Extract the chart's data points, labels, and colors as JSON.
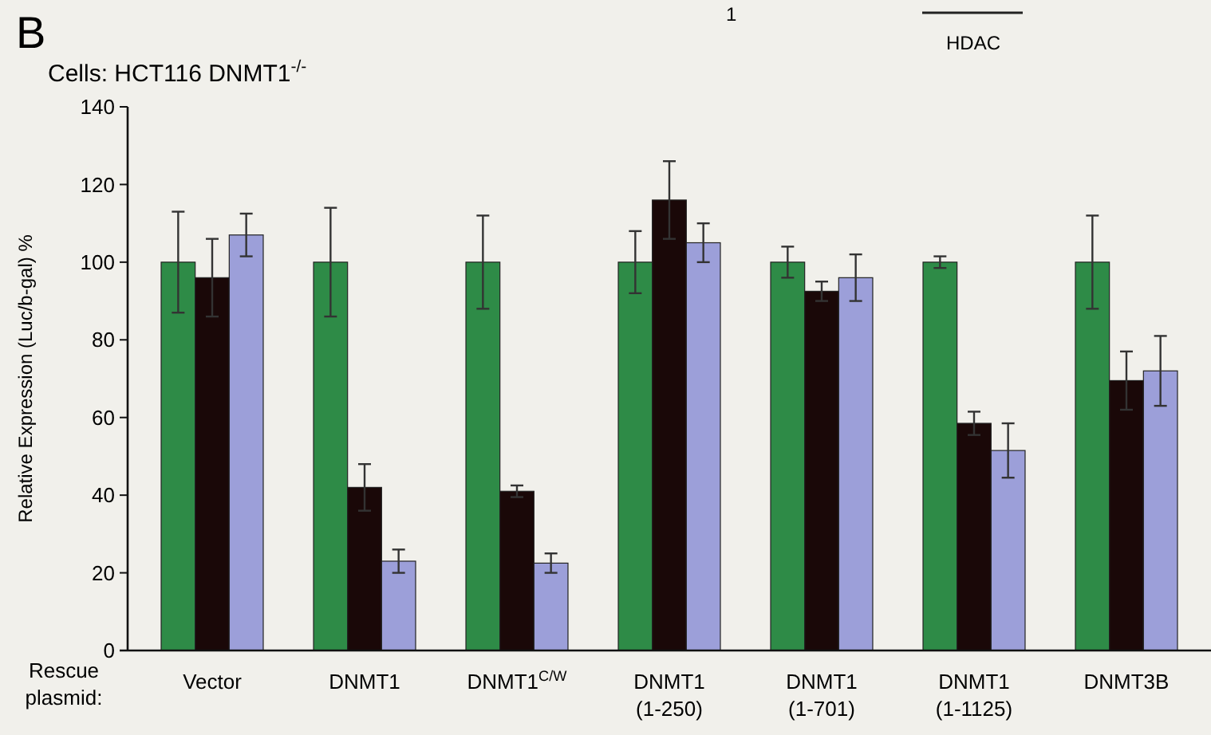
{
  "chart_data": {
    "type": "bar",
    "title": "Cells: HCT116 DNMT1$^{-/-}$",
    "ylabel": "Relative Expression (Luc/b-gal) %",
    "xlabel": "Rescue\nplasmid:",
    "annotations": [
      "B",
      "1",
      "HDAC"
    ],
    "categories": [
      "Vector",
      "DNMT1",
      "DNMT1$^{C/W}$",
      "DNMT1\n(1-250)",
      "DNMT1\n(1-701)",
      "DNMT1\n(1-1125)",
      "DNMT3B"
    ],
    "series": [
      {
        "color": "#2e8b47",
        "values": [
          100,
          100,
          100,
          100,
          100,
          100,
          100
        ],
        "errors": [
          13,
          14,
          12,
          8,
          4,
          1.5,
          12
        ]
      },
      {
        "color": "#1a0808",
        "values": [
          96,
          42,
          41,
          116,
          92.5,
          58.5,
          69.5
        ],
        "errors": [
          10,
          6,
          1.5,
          10,
          2.5,
          3,
          7.5
        ]
      },
      {
        "color": "#9c9fd9",
        "values": [
          107,
          23,
          22.5,
          105,
          96,
          51.5,
          72
        ],
        "errors": [
          5.5,
          3,
          2.5,
          5,
          6,
          7,
          9
        ]
      }
    ],
    "ylim": [
      0,
      140
    ],
    "yticks": [
      0,
      20,
      40,
      60,
      80,
      100,
      120,
      140
    ],
    "grid": false
  }
}
